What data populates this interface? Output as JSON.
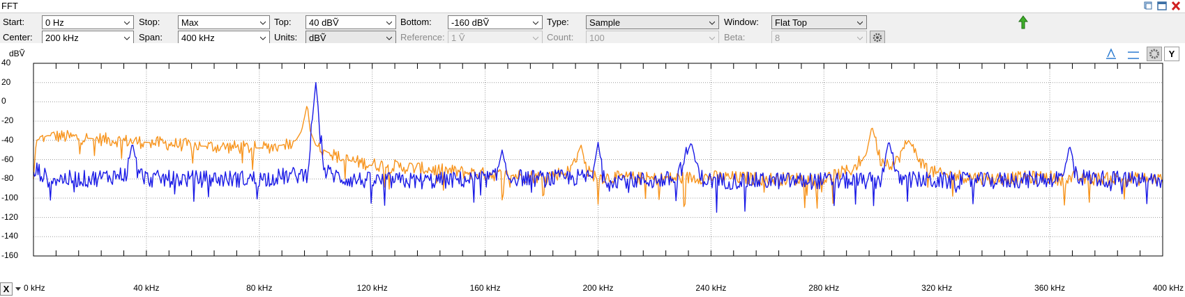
{
  "window": {
    "title": "FFT",
    "controls": [
      "restore-icon",
      "maximize-icon",
      "close-icon"
    ]
  },
  "settings": {
    "start": {
      "label": "Start:",
      "value": "0 Hz"
    },
    "stop": {
      "label": "Stop:",
      "value": "Max"
    },
    "top": {
      "label": "Top:",
      "value": "40 dBṼ"
    },
    "bottom": {
      "label": "Bottom:",
      "value": "-160 dBṼ"
    },
    "type": {
      "label": "Type:",
      "value": "Sample"
    },
    "window_fn": {
      "label": "Window:",
      "value": "Flat Top"
    },
    "center": {
      "label": "Center:",
      "value": "200 kHz"
    },
    "span": {
      "label": "Span:",
      "value": "400 kHz"
    },
    "units": {
      "label": "Units:",
      "value": "dBṼ"
    },
    "reference": {
      "label": "Reference:",
      "value": "1 Ṽ"
    },
    "count": {
      "label": "Count:",
      "value": "100"
    },
    "beta": {
      "label": "Beta:",
      "value": "8"
    }
  },
  "toolbar_icons": [
    "green-up-arrow-icon",
    "settings-gear-icon",
    "cursor-icon",
    "cursor-line-icon",
    "gear-icon",
    "y-axis-button"
  ],
  "y_button_label": "Y",
  "x_button_label": "X",
  "chart_data": {
    "type": "line",
    "ylabel": "dBṼ",
    "ylim": [
      -160,
      40
    ],
    "xlim": [
      0,
      400
    ],
    "yticks": [
      "40",
      "20",
      "0",
      "-20",
      "-40",
      "-60",
      "-80",
      "-100",
      "-120",
      "-140",
      "-160"
    ],
    "xticks": [
      "0 kHz",
      "40 kHz",
      "80 kHz",
      "120 kHz",
      "160 kHz",
      "200 kHz",
      "240 kHz",
      "280 kHz",
      "320 kHz",
      "360 kHz",
      "400 kHz"
    ],
    "grid": true,
    "colors": {
      "channel_a": "#f7941d",
      "channel_b": "#1a1ae6"
    },
    "series": [
      {
        "color": "#f7941d",
        "x": [
          0,
          1,
          5,
          20,
          40,
          60,
          80,
          88,
          93,
          95,
          97,
          98,
          100,
          104,
          110,
          120,
          140,
          160,
          180,
          190,
          194,
          196,
          200,
          220,
          240,
          260,
          280,
          290,
          295,
          297,
          300,
          305,
          310,
          315,
          320,
          340,
          360,
          363,
          366,
          369,
          372,
          380,
          390,
          395,
          400
        ],
        "y": [
          -80,
          -40,
          -35,
          -38,
          -42,
          -46,
          -48,
          -45,
          -40,
          -30,
          -2,
          -30,
          -45,
          -52,
          -60,
          -65,
          -70,
          -75,
          -78,
          -72,
          -45,
          -72,
          -78,
          -80,
          -78,
          -80,
          -80,
          -70,
          -55,
          -25,
          -60,
          -65,
          -40,
          -65,
          -75,
          -80,
          -78,
          -80,
          -80,
          -78,
          -80,
          -80,
          -80,
          -80,
          -80
        ]
      },
      {
        "color": "#1a1ae6",
        "x": [
          0,
          1,
          5,
          20,
          33,
          35,
          37,
          40,
          60,
          80,
          97,
          100,
          103,
          110,
          120,
          140,
          160,
          164,
          166,
          168,
          180,
          198,
          200,
          202,
          220,
          228,
          233,
          236,
          240,
          260,
          280,
          300,
          303,
          306,
          320,
          340,
          360,
          365,
          367,
          370,
          380,
          400
        ],
        "y": [
          -80,
          -70,
          -80,
          -80,
          -75,
          -42,
          -72,
          -80,
          -80,
          -80,
          -75,
          20,
          -72,
          -80,
          -82,
          -82,
          -80,
          -78,
          -50,
          -78,
          -80,
          -78,
          -42,
          -80,
          -82,
          -80,
          -42,
          -78,
          -82,
          -82,
          -82,
          -82,
          -40,
          -80,
          -82,
          -82,
          -80,
          -78,
          -45,
          -78,
          -80,
          -82
        ]
      }
    ]
  }
}
